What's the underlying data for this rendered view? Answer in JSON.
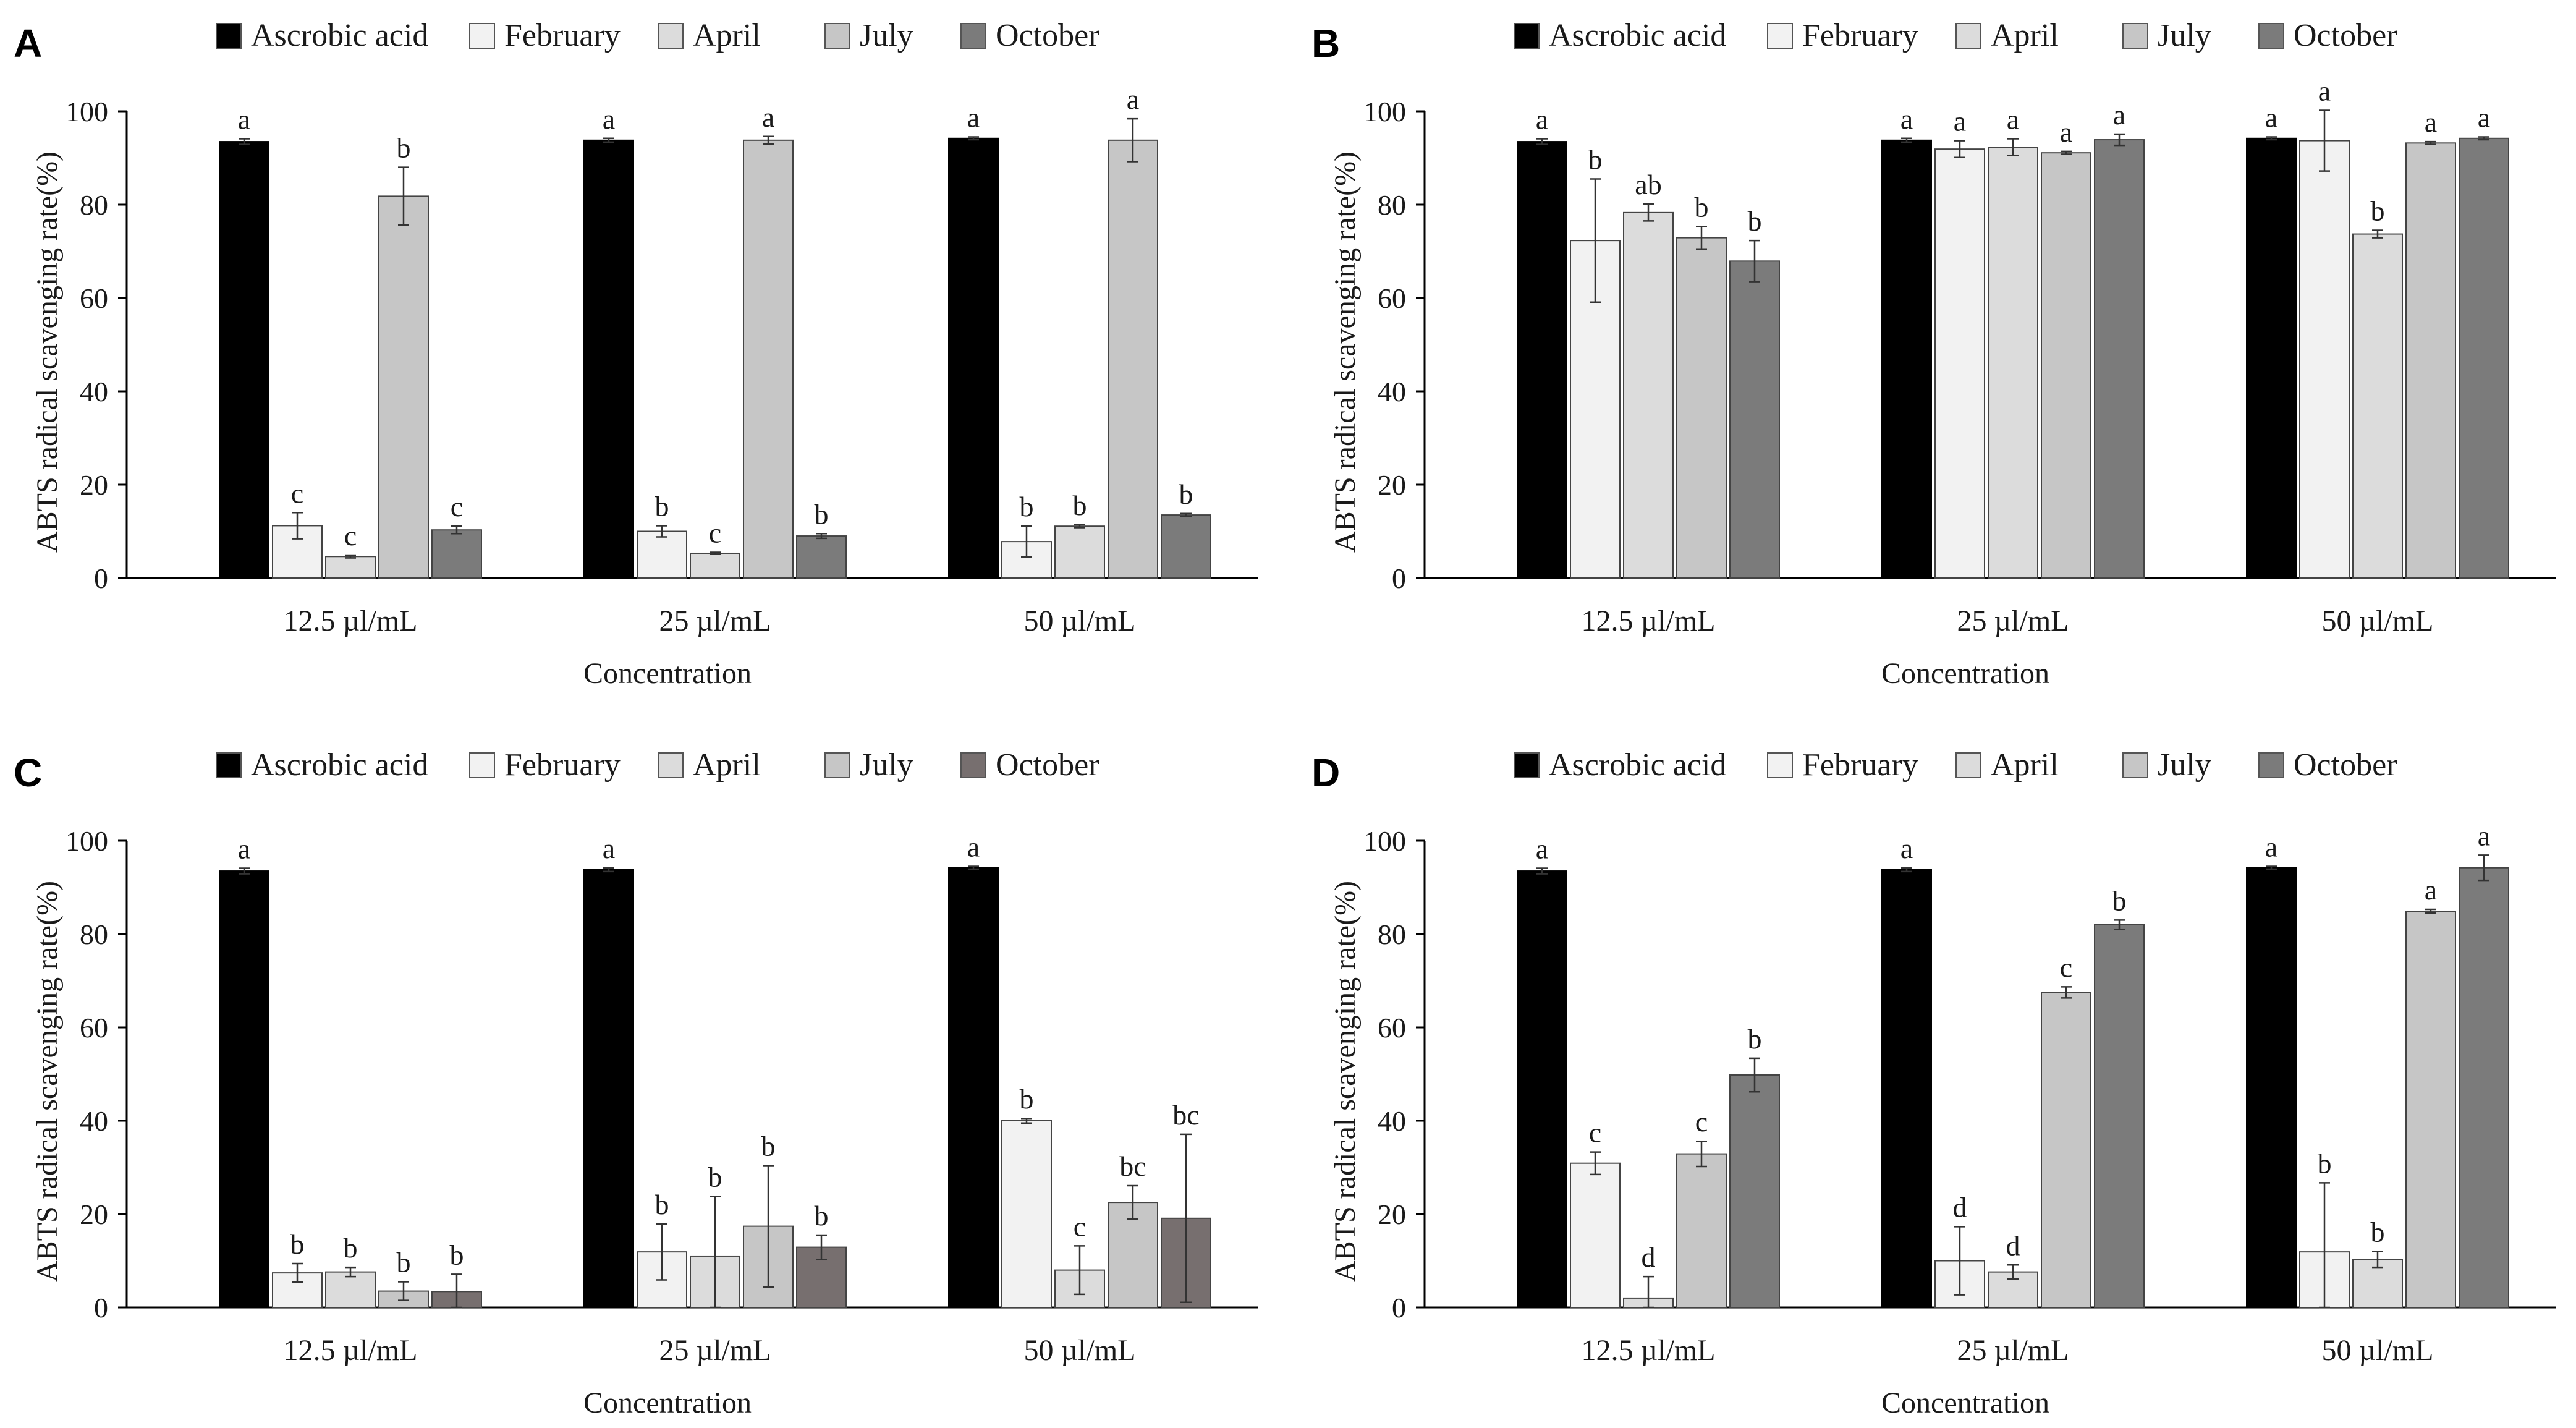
{
  "colors": {
    "Ascrobic acid": "#000000",
    "February": "#f2f2f2",
    "April": "#dcdcdc",
    "July": "#c6c6c6",
    "October": "#7b7b7b",
    "October_C": "#776f6f"
  },
  "chart_data": [
    {
      "type": "bar",
      "panel": "A",
      "categories": [
        "12.5 µl/mL",
        "25 µl/mL",
        "50 µl/mL"
      ],
      "xlabel": "Concentration",
      "ylabel": "ABTS radical scavenging rate(%)",
      "ylim": [
        0,
        100
      ],
      "yticks": [
        "0",
        "20",
        "40",
        "60",
        "80",
        "100"
      ],
      "legend_position": "top",
      "series": [
        {
          "name": "Ascrobic acid",
          "values": [
            93.5,
            93.8,
            94.2
          ],
          "errors": [
            0.6,
            0.4,
            0.3
          ],
          "labels": [
            "a",
            "a",
            "a"
          ]
        },
        {
          "name": "February",
          "values": [
            11.2,
            10.0,
            7.8
          ],
          "errors": [
            2.8,
            1.2,
            3.3
          ],
          "labels": [
            "c",
            "b",
            "b"
          ]
        },
        {
          "name": "April",
          "values": [
            4.6,
            5.3,
            11.1
          ],
          "errors": [
            0.3,
            0.2,
            0.3
          ],
          "labels": [
            "c",
            "c",
            "b"
          ]
        },
        {
          "name": "July",
          "values": [
            81.8,
            93.8,
            93.8
          ],
          "errors": [
            6.2,
            0.8,
            4.6
          ],
          "labels": [
            "b",
            "a",
            "a"
          ]
        },
        {
          "name": "October",
          "values": [
            10.3,
            9.0,
            13.5
          ],
          "errors": [
            0.8,
            0.5,
            0.3
          ],
          "labels": [
            "c",
            "b",
            "b"
          ]
        }
      ]
    },
    {
      "type": "bar",
      "panel": "B",
      "categories": [
        "12.5 µl/mL",
        "25 µl/mL",
        "50 µl/mL"
      ],
      "xlabel": "Concentration",
      "ylabel": "ABTS radical scavenging rate(%)",
      "ylim": [
        0,
        100
      ],
      "yticks": [
        "0",
        "20",
        "40",
        "60",
        "80",
        "100"
      ],
      "legend_position": "top",
      "series": [
        {
          "name": "Ascrobic acid",
          "values": [
            93.5,
            93.8,
            94.2
          ],
          "errors": [
            0.6,
            0.4,
            0.3
          ],
          "labels": [
            "a",
            "a",
            "a"
          ]
        },
        {
          "name": "February",
          "values": [
            72.3,
            91.9,
            93.7
          ],
          "errors": [
            13.2,
            1.8,
            6.5
          ],
          "labels": [
            "b",
            "a",
            "a"
          ]
        },
        {
          "name": "April",
          "values": [
            78.3,
            92.3,
            73.7
          ],
          "errors": [
            1.8,
            1.8,
            0.8
          ],
          "labels": [
            "ab",
            "a",
            "b"
          ]
        },
        {
          "name": "July",
          "values": [
            72.9,
            91.1,
            93.2
          ],
          "errors": [
            2.4,
            0.3,
            0.3
          ],
          "labels": [
            "b",
            "a",
            "a"
          ]
        },
        {
          "name": "October",
          "values": [
            67.9,
            93.9,
            94.2
          ],
          "errors": [
            4.4,
            1.2,
            0.3
          ],
          "labels": [
            "b",
            "a",
            "a"
          ]
        }
      ]
    },
    {
      "type": "bar",
      "panel": "C",
      "categories": [
        "12.5 µl/mL",
        "25 µl/mL",
        "50 µl/mL"
      ],
      "xlabel": "Concentration",
      "ylabel": "ABTS radical scavenging rate(%)",
      "ylim": [
        0,
        100
      ],
      "yticks": [
        "0",
        "20",
        "40",
        "60",
        "80",
        "100"
      ],
      "legend_position": "top",
      "series": [
        {
          "name": "Ascrobic acid",
          "values": [
            93.5,
            93.8,
            94.2
          ],
          "errors": [
            0.6,
            0.4,
            0.3
          ],
          "labels": [
            "a",
            "a",
            "a"
          ]
        },
        {
          "name": "February",
          "values": [
            7.4,
            11.9,
            40.0
          ],
          "errors": [
            2.0,
            6.0,
            0.5
          ],
          "labels": [
            "b",
            "b",
            "b"
          ]
        },
        {
          "name": "April",
          "values": [
            7.6,
            11.0,
            8.0
          ],
          "errors": [
            1.0,
            12.8,
            5.2
          ],
          "labels": [
            "b",
            "b",
            "c"
          ]
        },
        {
          "name": "July",
          "values": [
            3.5,
            17.4,
            22.5
          ],
          "errors": [
            2.0,
            13.0,
            3.6
          ],
          "labels": [
            "b",
            "b",
            "bc"
          ]
        },
        {
          "name": "October",
          "values": [
            3.4,
            12.9,
            19.1
          ],
          "errors": [
            3.7,
            2.6,
            18.0
          ],
          "labels": [
            "b",
            "b",
            "bc"
          ]
        }
      ]
    },
    {
      "type": "bar",
      "panel": "D",
      "categories": [
        "12.5 µl/mL",
        "25 µl/mL",
        "50 µl/mL"
      ],
      "xlabel": "Concentration",
      "ylabel": "ABTS radical scavenging rate(%)",
      "ylim": [
        0,
        100
      ],
      "yticks": [
        "0",
        "20",
        "40",
        "60",
        "80",
        "100"
      ],
      "legend_position": "top",
      "series": [
        {
          "name": "Ascrobic acid",
          "values": [
            93.5,
            93.8,
            94.2
          ],
          "errors": [
            0.6,
            0.4,
            0.3
          ],
          "labels": [
            "a",
            "a",
            "a"
          ]
        },
        {
          "name": "February",
          "values": [
            30.9,
            10.0,
            11.9
          ],
          "errors": [
            2.4,
            7.3,
            14.8
          ],
          "labels": [
            "c",
            "d",
            "b"
          ]
        },
        {
          "name": "April",
          "values": [
            2.0,
            7.6,
            10.3
          ],
          "errors": [
            4.6,
            1.5,
            1.7
          ],
          "labels": [
            "d",
            "d",
            "b"
          ]
        },
        {
          "name": "July",
          "values": [
            32.9,
            67.5,
            84.9
          ],
          "errors": [
            2.7,
            1.2,
            0.4
          ],
          "labels": [
            "c",
            "c",
            "a"
          ]
        },
        {
          "name": "October",
          "values": [
            49.8,
            82.0,
            94.2
          ],
          "errors": [
            3.6,
            1.0,
            2.7
          ],
          "labels": [
            "b",
            "b",
            "a"
          ]
        }
      ]
    }
  ]
}
